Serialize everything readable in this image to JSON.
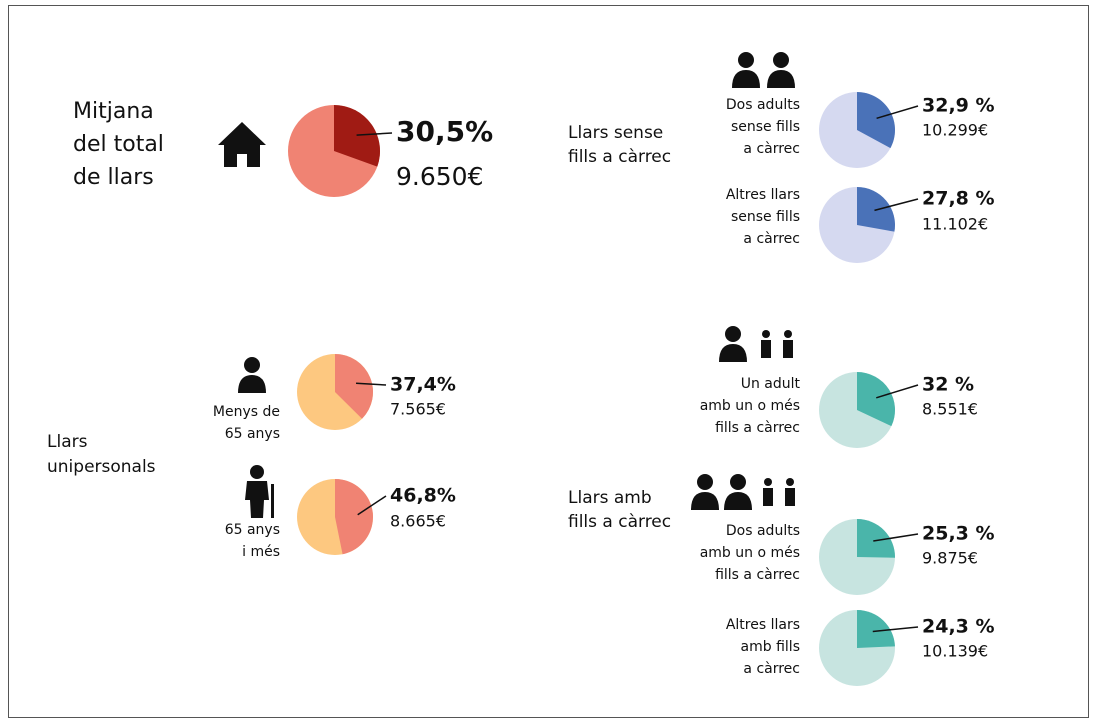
{
  "groups": [
    {
      "title_lines": [
        "Mitjana",
        "del total",
        "de llars"
      ]
    },
    {
      "title_lines": [
        "Llars sense",
        "fills a càrrec"
      ]
    },
    {
      "title_lines": [
        "Llars",
        "unipersonals"
      ]
    },
    {
      "title_lines": [
        "Llars amb",
        "fills a càrrec"
      ]
    }
  ],
  "chart_data": [
    {
      "type": "pie",
      "label": [],
      "values": [
        30.5
      ],
      "value_labels": [
        "30,5%"
      ],
      "amount": "9.650€",
      "colors": [
        "#a01b14",
        "#f08373"
      ]
    },
    {
      "type": "pie",
      "label": [
        "Dos adults",
        "sense fills",
        "a càrrec"
      ],
      "values": [
        32.9
      ],
      "value_labels": [
        "32,9 %"
      ],
      "amount": "10.299€",
      "colors": [
        "#4a72b8",
        "#d5d9f0"
      ]
    },
    {
      "type": "pie",
      "label": [
        "Altres llars",
        "sense fills",
        "a càrrec"
      ],
      "values": [
        27.8
      ],
      "value_labels": [
        "27,8 %"
      ],
      "amount": "11.102€",
      "colors": [
        "#4a72b8",
        "#d5d9f0"
      ]
    },
    {
      "type": "pie",
      "label": [
        "Menys de",
        "65 anys"
      ],
      "values": [
        37.4
      ],
      "value_labels": [
        "37,4%"
      ],
      "amount": "7.565€",
      "colors": [
        "#f08373",
        "#fdc880"
      ]
    },
    {
      "type": "pie",
      "label": [
        "65 anys",
        "i més"
      ],
      "values": [
        46.8
      ],
      "value_labels": [
        "46,8%"
      ],
      "amount": "8.665€",
      "colors": [
        "#f08373",
        "#fdc880"
      ]
    },
    {
      "type": "pie",
      "label": [
        "Un adult",
        "amb un o més",
        "fills a càrrec"
      ],
      "values": [
        32
      ],
      "value_labels": [
        "32 %"
      ],
      "amount": "8.551€",
      "colors": [
        "#4ab5aa",
        "#c7e4e0"
      ]
    },
    {
      "type": "pie",
      "label": [
        "Dos adults",
        "amb un o més",
        "fills a càrrec"
      ],
      "values": [
        25.3
      ],
      "value_labels": [
        "25,3 %"
      ],
      "amount": "9.875€",
      "colors": [
        "#4ab5aa",
        "#c7e4e0"
      ]
    },
    {
      "type": "pie",
      "label": [
        "Altres llars",
        "amb fills",
        "a càrrec"
      ],
      "values": [
        24.3
      ],
      "value_labels": [
        "24,3 %"
      ],
      "amount": "10.139€",
      "colors": [
        "#4ab5aa",
        "#c7e4e0"
      ]
    }
  ]
}
